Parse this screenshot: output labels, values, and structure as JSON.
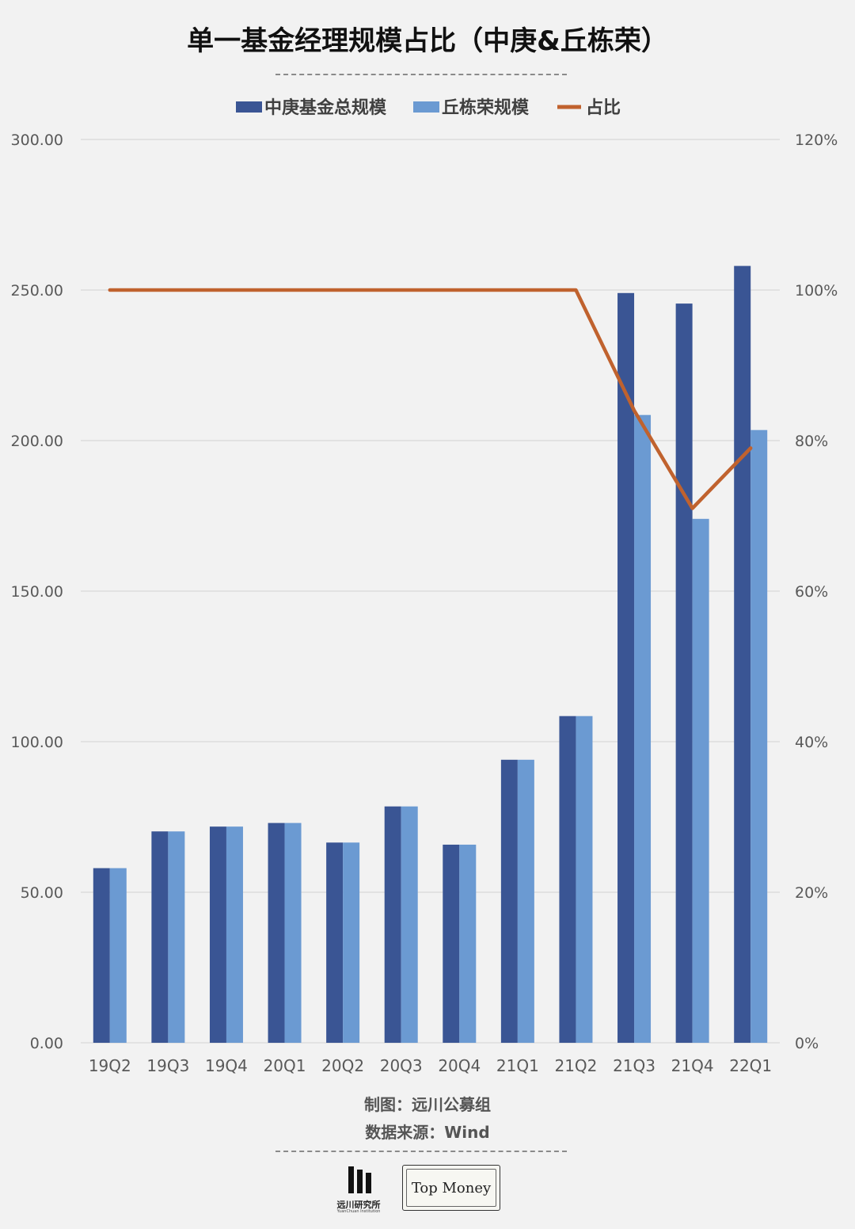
{
  "page": {
    "title": "单一基金经理规模占比（中庚&丘栋荣）",
    "credit": "制图：远川公募组",
    "source": "数据来源：Wind",
    "logo_yuanchuan_name": "远川研究所",
    "logo_yuanchuan_sub": "YuanChuan Institution",
    "logo_topmoney": "Top Money"
  },
  "chart_data": {
    "type": "bar",
    "categories": [
      "19Q2",
      "19Q3",
      "19Q4",
      "20Q1",
      "20Q2",
      "20Q3",
      "20Q4",
      "21Q1",
      "21Q2",
      "21Q3",
      "21Q4",
      "22Q1"
    ],
    "series": [
      {
        "name": "中庚基金总规模",
        "type": "bar",
        "axis": "left",
        "color": "#3a5594",
        "values": [
          58.0,
          70.2,
          71.8,
          73.0,
          66.5,
          78.5,
          65.8,
          94.0,
          108.5,
          249.0,
          245.5,
          258.0
        ]
      },
      {
        "name": "丘栋荣规模",
        "type": "bar",
        "axis": "left",
        "color": "#6b9ad2",
        "values": [
          58.0,
          70.2,
          71.8,
          73.0,
          66.5,
          78.5,
          65.8,
          94.0,
          108.5,
          208.5,
          174.0,
          203.5
        ]
      },
      {
        "name": "占比",
        "type": "line",
        "axis": "right",
        "color": "#c0622e",
        "values": [
          100,
          100,
          100,
          100,
          100,
          100,
          100,
          100,
          100,
          84,
          71,
          79
        ]
      }
    ],
    "y_left": {
      "min": 0,
      "max": 300,
      "ticks": [
        "0.00",
        "50.00",
        "100.00",
        "150.00",
        "200.00",
        "250.00",
        "300.00"
      ]
    },
    "y_right": {
      "min": 0,
      "max": 120,
      "ticks": [
        "0%",
        "20%",
        "40%",
        "60%",
        "80%",
        "100%",
        "120%"
      ]
    },
    "legend_position": "top",
    "grid": true
  }
}
